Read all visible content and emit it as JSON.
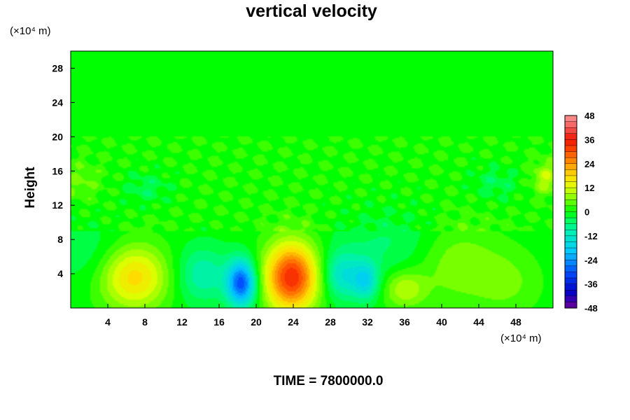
{
  "chart_data": {
    "type": "heatmap",
    "title": "vertical velocity",
    "ylabel": "Height",
    "xlabel": "",
    "x_unit": "(×10⁴ m)",
    "y_unit": "(×10⁴ m)",
    "footer": "TIME = 7800000.0",
    "xlim": [
      0,
      52
    ],
    "ylim": [
      0,
      30
    ],
    "x_ticks": [
      4,
      8,
      12,
      16,
      20,
      24,
      28,
      32,
      36,
      40,
      44,
      48
    ],
    "y_ticks": [
      4,
      8,
      12,
      16,
      20,
      24,
      28
    ],
    "colorbar": {
      "min": -48,
      "max": 48,
      "ticks": [
        48,
        36,
        24,
        12,
        0,
        -12,
        -24,
        -36,
        -48
      ]
    },
    "features": [
      {
        "x": 6.8,
        "y": 3.6,
        "value": 18,
        "sx": 2.6,
        "sy": 2.6
      },
      {
        "x": 23.8,
        "y": 3.6,
        "value": 34,
        "sx": 2.0,
        "sy": 2.8
      },
      {
        "x": 18.4,
        "y": 2.9,
        "value": -30,
        "sx": 1.1,
        "sy": 1.9
      },
      {
        "x": 14.2,
        "y": 3.9,
        "value": -10,
        "sx": 2.0,
        "sy": 2.3
      },
      {
        "x": 29.2,
        "y": 3.8,
        "value": -13,
        "sx": 1.4,
        "sy": 2.0
      },
      {
        "x": 31.8,
        "y": 3.2,
        "value": -15,
        "sx": 1.0,
        "sy": 1.6
      },
      {
        "x": 36.0,
        "y": 2.2,
        "value": 10,
        "sx": 1.6,
        "sy": 1.5
      },
      {
        "x": 41.5,
        "y": 5.2,
        "value": 7,
        "sx": 3.2,
        "sy": 3.2
      },
      {
        "x": 47.0,
        "y": 3.0,
        "value": 5,
        "sx": 2.5,
        "sy": 2.6
      },
      {
        "x": 2.3,
        "y": 6.2,
        "value": -4,
        "sx": 2.6,
        "sy": 2.8
      },
      {
        "x": 34.5,
        "y": 7.5,
        "value": -5,
        "sx": 4.0,
        "sy": 3.0
      },
      {
        "x": 8.2,
        "y": 14.0,
        "value": -5,
        "sx": 1.8,
        "sy": 1.3
      },
      {
        "x": 1.0,
        "y": 14.8,
        "value": 4,
        "sx": 1.5,
        "sy": 1.5
      },
      {
        "x": 51.2,
        "y": 15.2,
        "value": 9,
        "sx": 1.0,
        "sy": 1.3
      },
      {
        "x": 45.8,
        "y": 14.6,
        "value": -5,
        "sx": 1.8,
        "sy": 1.4
      }
    ]
  }
}
